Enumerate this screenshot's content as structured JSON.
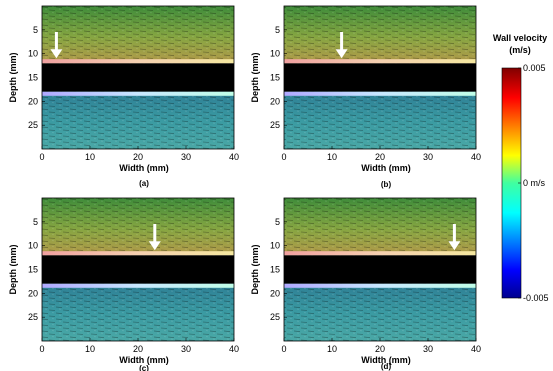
{
  "chart_data": {
    "type": "heatmap",
    "description_kind": "ultrasound B-mode images with wall velocity color overlay",
    "panels": [
      {
        "label": "(a)",
        "arrow_x_mm": 3
      },
      {
        "label": "(b)",
        "arrow_x_mm": 12
      },
      {
        "label": "(c)",
        "arrow_x_mm": 23.5
      },
      {
        "label": "(d)",
        "arrow_x_mm": 35.5
      }
    ],
    "xlabel": "Width (mm)",
    "ylabel": "Depth (mm)",
    "xlim": [
      0,
      40
    ],
    "ylim": [
      30,
      0
    ],
    "xticks": [
      0,
      10,
      20,
      30,
      40
    ],
    "yticks": [
      5,
      10,
      15,
      20,
      25
    ],
    "lumen_depth_mm": [
      12,
      18
    ],
    "colorbar": {
      "title_line1": "Wall velocity",
      "title_line2": "(m/s)",
      "min": -0.005,
      "max": 0.005,
      "tick_labels": [
        "0.005",
        "0 m/s",
        "-0.005"
      ],
      "tick_values": [
        0.005,
        0,
        -0.005
      ],
      "colormap": "jet"
    }
  }
}
